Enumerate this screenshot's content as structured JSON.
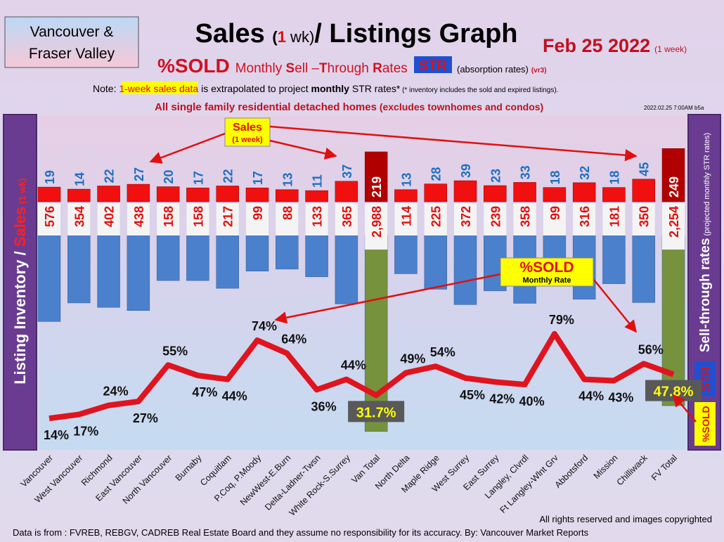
{
  "header": {
    "region_lines": [
      "Vancouver &",
      "Fraser Valley"
    ],
    "title_parts": [
      "Sales ",
      "(",
      "1",
      " wk)",
      "/ Listings Graph"
    ],
    "date": "Feb  25  2022",
    "date_note": "(1 week)",
    "subtitle_parts": [
      "%SOLD",
      "Monthly ",
      "S",
      "ell –",
      "T",
      "hrough ",
      "R",
      "ates",
      "STR",
      "(absorption rates)",
      "(vr3)"
    ],
    "note_parts": [
      "Note: ",
      "1-week sales data",
      " is extrapolated to project ",
      "monthly",
      " STR rates*",
      " (* inventory includes the sold and expired listings)."
    ],
    "scope_parts": [
      "All single family residential detached homes",
      " (excludes townhomes and condos)"
    ],
    "timestamp": "2022.02.25 7:00AM b5a"
  },
  "chart_data": {
    "type": "combo",
    "left_axis_parts": [
      "Listing Inventory / ",
      "Sales",
      " (1 wk)"
    ],
    "right_axis_parts": [
      "Sell-through rates",
      " (projected monthly STR rates)"
    ],
    "right_badges": [
      "STR",
      "%SOLD"
    ],
    "annotations": {
      "sales": [
        "Sales",
        "(1 week)"
      ],
      "sold": [
        "%SOLD",
        "Monthly Rate"
      ]
    },
    "categories": [
      "Vancouver",
      "West Vancouver",
      "Richmond",
      "East Vancouver",
      "North Vancouver",
      "Burnaby",
      "Coquitlam",
      "P.Coq, P.Moody",
      "NewWest-E.Burn",
      "Delta-Ladner-Twsn",
      "White Rock-S.Surrey",
      "Van Total",
      "North Delta",
      "Maple Ridge",
      "West Surrey",
      "East Surrey",
      "Langley, Clvrdl",
      "Ft Langley-Wlnt Grv",
      "Abbotsford",
      "Mission",
      "Chilliwack",
      "FV Total"
    ],
    "series": [
      {
        "name": "Sales",
        "values": [
          19,
          14,
          22,
          27,
          20,
          17,
          22,
          17,
          13,
          11,
          37,
          219,
          13,
          28,
          39,
          23,
          33,
          18,
          32,
          18,
          45,
          249
        ],
        "colors": [
          "#f01010",
          "#f01010",
          "#f01010",
          "#f01010",
          "#f01010",
          "#f01010",
          "#f01010",
          "#f01010",
          "#f01010",
          "#f01010",
          "#f01010",
          "#b00000",
          "#f01010",
          "#f01010",
          "#f01010",
          "#f01010",
          "#f01010",
          "#f01010",
          "#f01010",
          "#f01010",
          "#f01010",
          "#b00000"
        ]
      },
      {
        "name": "Listing Inventory",
        "values": [
          576,
          354,
          402,
          438,
          158,
          158,
          217,
          99,
          88,
          133,
          365,
          2988,
          114,
          225,
          372,
          239,
          358,
          99,
          316,
          181,
          350,
          2254
        ],
        "value_labels": [
          "576",
          "354",
          "402",
          "438",
          "158",
          "158",
          "217",
          "99",
          "88",
          "133",
          "365",
          "2,988",
          "114",
          "225",
          "372",
          "239",
          "358",
          "99",
          "316",
          "181",
          "350",
          "2,254"
        ],
        "colors": [
          "#4a80cc",
          "#4a80cc",
          "#4a80cc",
          "#4a80cc",
          "#4a80cc",
          "#4a80cc",
          "#4a80cc",
          "#4a80cc",
          "#4a80cc",
          "#4a80cc",
          "#4a80cc",
          "#76923c",
          "#4a80cc",
          "#4a80cc",
          "#4a80cc",
          "#4a80cc",
          "#4a80cc",
          "#4a80cc",
          "#4a80cc",
          "#4a80cc",
          "#4a80cc",
          "#76923c"
        ]
      },
      {
        "name": "%SOLD",
        "color": "#e0141e",
        "values": [
          14,
          17,
          24,
          27,
          55,
          47,
          44,
          74,
          64,
          36,
          44,
          31.7,
          49,
          54,
          45,
          42,
          40,
          79,
          44,
          43,
          56,
          47.8
        ],
        "value_labels": [
          "14%",
          "17%",
          "24%",
          "27%",
          "55%",
          "47%",
          "44%",
          "74%",
          "64%",
          "36%",
          "44%",
          "31.7%",
          "49%",
          "54%",
          "45%",
          "42%",
          "40%",
          "79%",
          "44%",
          "43%",
          "56%",
          "47.8%"
        ]
      }
    ]
  },
  "footer": {
    "rights": "All rights reserved and  images copyrighted",
    "source": "Data is from : FVREB, REBGV, CADREB Real Estate Board and they assume no responsibility for its accuracy. By: Vancouver Market Reports"
  }
}
